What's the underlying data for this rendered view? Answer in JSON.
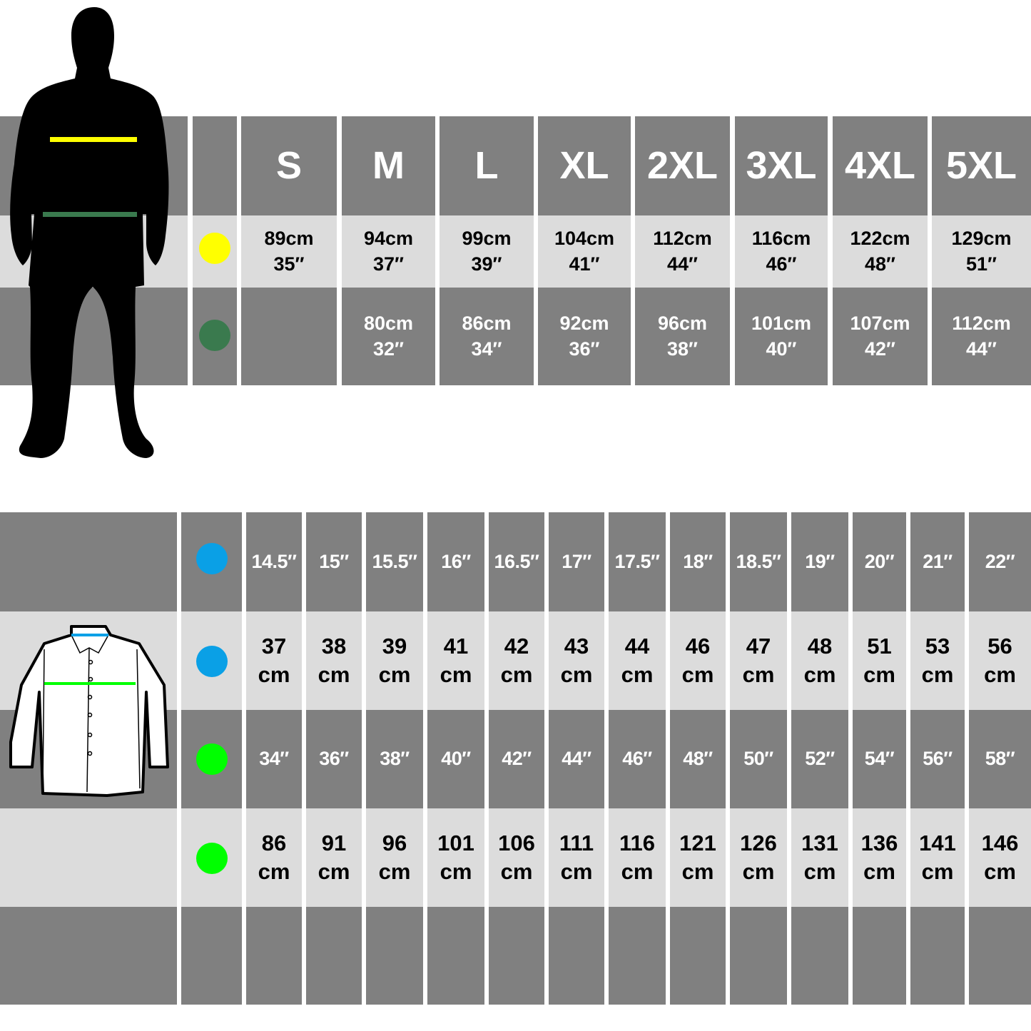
{
  "colors": {
    "dark_cell": "#808080",
    "light_cell": "#dcdcdc",
    "chest_marker": "#ffff00",
    "waist_marker": "#3a7a4e",
    "collar_marker": "#0aa0e6",
    "shirt_chest_marker": "#00ff00"
  },
  "body_chart": {
    "figure_icon": "male-silhouette",
    "sizes": [
      "S",
      "M",
      "L",
      "XL",
      "2XL",
      "3XL",
      "4XL",
      "5XL"
    ],
    "chest": [
      {
        "cm": "89cm",
        "in": "35″"
      },
      {
        "cm": "94cm",
        "in": "37″"
      },
      {
        "cm": "99cm",
        "in": "39″"
      },
      {
        "cm": "104cm",
        "in": "41″"
      },
      {
        "cm": "112cm",
        "in": "44″"
      },
      {
        "cm": "116cm",
        "in": "46″"
      },
      {
        "cm": "122cm",
        "in": "48″"
      },
      {
        "cm": "129cm",
        "in": "51″"
      }
    ],
    "waist": [
      {
        "cm": "",
        "in": ""
      },
      {
        "cm": "80cm",
        "in": "32″"
      },
      {
        "cm": "86cm",
        "in": "34″"
      },
      {
        "cm": "92cm",
        "in": "36″"
      },
      {
        "cm": "96cm",
        "in": "38″"
      },
      {
        "cm": "101cm",
        "in": "40″"
      },
      {
        "cm": "107cm",
        "in": "42″"
      },
      {
        "cm": "112cm",
        "in": "44″"
      }
    ]
  },
  "shirt_chart": {
    "shirt_icon": "long-sleeve-shirt",
    "collar_in": [
      "14.5″",
      "15″",
      "15.5″",
      "16″",
      "16.5″",
      "17″",
      "17.5″",
      "18″",
      "18.5″",
      "19″",
      "20″",
      "21″",
      "22″"
    ],
    "collar_cm": [
      "37",
      "38",
      "39",
      "41",
      "42",
      "43",
      "44",
      "46",
      "47",
      "48",
      "51",
      "53",
      "56"
    ],
    "chest_in": [
      "34″",
      "36″",
      "38″",
      "40″",
      "42″",
      "44″",
      "46″",
      "48″",
      "50″",
      "52″",
      "54″",
      "56″",
      "58″"
    ],
    "chest_cm": [
      "86",
      "91",
      "96",
      "101",
      "106",
      "111",
      "116",
      "121",
      "126",
      "131",
      "136",
      "141",
      "146"
    ],
    "unit_cm": "cm"
  }
}
